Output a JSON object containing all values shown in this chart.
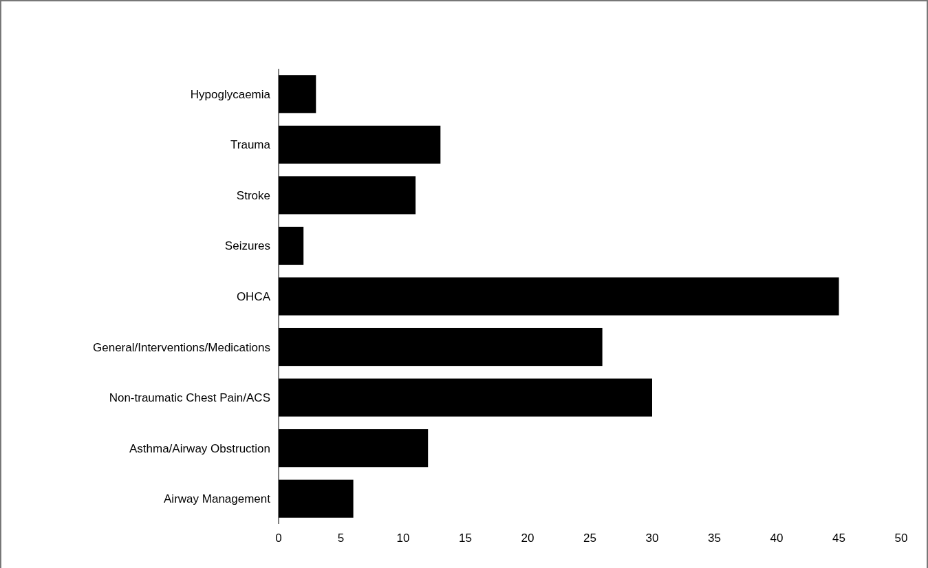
{
  "chart_data": {
    "type": "bar",
    "orientation": "horizontal",
    "categories": [
      "Hypoglycaemia",
      "Trauma",
      "Stroke",
      "Seizures",
      "OHCA",
      "General/Interventions/Medications",
      "Non-traumatic Chest Pain/ACS",
      "Asthma/Airway Obstruction",
      "Airway Management"
    ],
    "values": [
      3,
      13,
      11,
      2,
      45,
      26,
      30,
      12,
      6
    ],
    "color": "#000000",
    "xlim": [
      0,
      50
    ],
    "xticks": [
      0,
      5,
      10,
      15,
      20,
      25,
      30,
      35,
      40,
      45,
      50
    ],
    "grid": false
  }
}
